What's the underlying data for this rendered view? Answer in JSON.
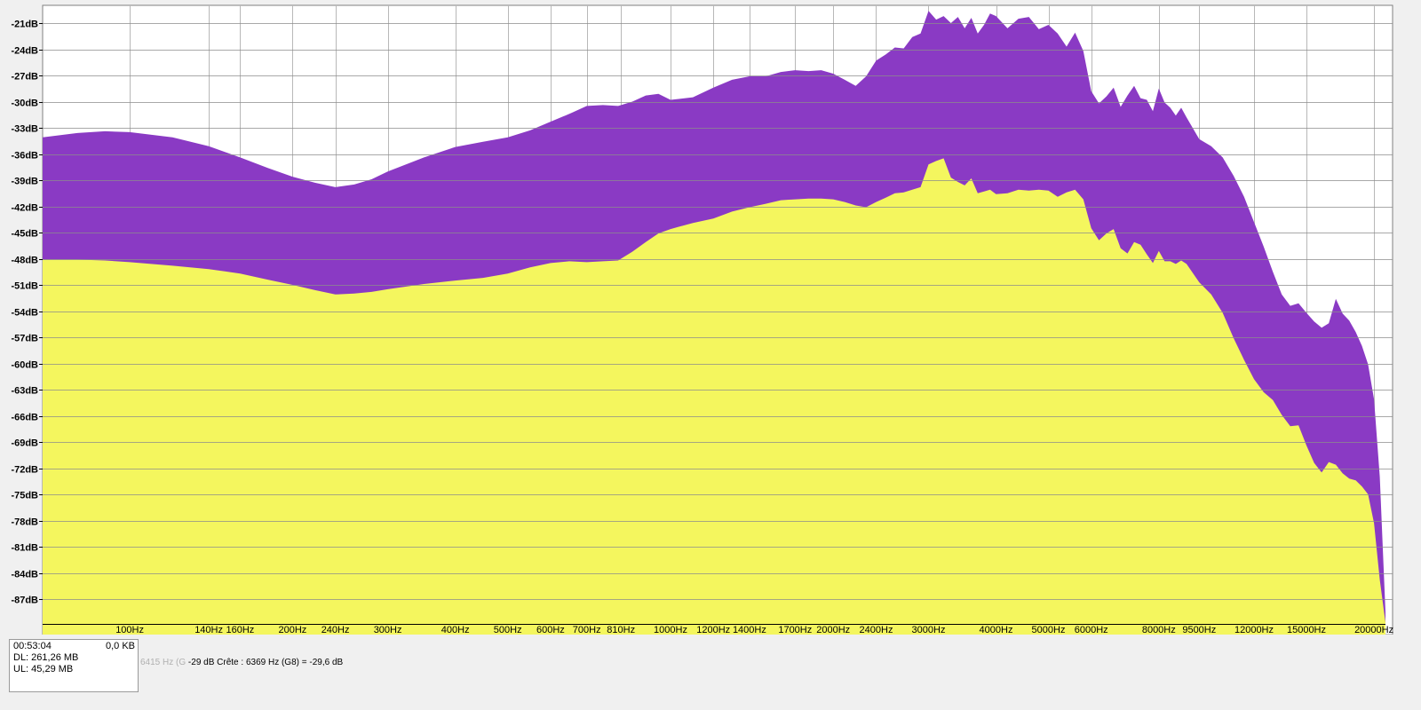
{
  "chart_data": {
    "type": "area",
    "xscale": "log",
    "xlim": [
      69,
      21000
    ],
    "ylim": [
      -89.7,
      -19
    ],
    "grid": true,
    "legend": "none",
    "yticks": [
      "-21dB",
      "-24dB",
      "-27dB",
      "-30dB",
      "-33dB",
      "-36dB",
      "-39dB",
      "-42dB",
      "-45dB",
      "-48dB",
      "-51dB",
      "-54dB",
      "-57dB",
      "-60dB",
      "-63dB",
      "-66dB",
      "-69dB",
      "-72dB",
      "-75dB",
      "-78dB",
      "-81dB",
      "-84dB",
      "-87dB"
    ],
    "ytick_values": [
      -21,
      -24,
      -27,
      -30,
      -33,
      -36,
      -39,
      -42,
      -45,
      -48,
      -51,
      -54,
      -57,
      -60,
      -63,
      -66,
      -69,
      -72,
      -75,
      -78,
      -81,
      -84,
      -87
    ],
    "xticks": [
      "100Hz",
      "140Hz",
      "160Hz",
      "200Hz",
      "240Hz",
      "300Hz",
      "400Hz",
      "500Hz",
      "600Hz",
      "700Hz",
      "810Hz",
      "1000Hz",
      "1200Hz",
      "1400Hz",
      "1700Hz",
      "2000Hz",
      "2400Hz",
      "3000Hz",
      "4000Hz",
      "5000Hz",
      "6000Hz",
      "8000Hz",
      "9500Hz",
      "12000Hz",
      "15000Hz",
      "20000Hz"
    ],
    "xtick_values": [
      100,
      140,
      160,
      200,
      240,
      300,
      400,
      500,
      600,
      700,
      810,
      1000,
      1200,
      1400,
      1700,
      2000,
      2400,
      3000,
      4000,
      5000,
      6000,
      8000,
      9500,
      12000,
      15000,
      20000
    ],
    "series": [
      {
        "color": "#8a3ac4",
        "x": [
          69,
          80,
          90,
          100,
          120,
          140,
          160,
          180,
          200,
          220,
          240,
          260,
          280,
          300,
          350,
          400,
          450,
          500,
          550,
          600,
          650,
          700,
          750,
          800,
          850,
          900,
          950,
          1000,
          1100,
          1200,
          1300,
          1400,
          1500,
          1600,
          1700,
          1800,
          1900,
          2000,
          2100,
          2200,
          2300,
          2400,
          2500,
          2600,
          2700,
          2800,
          2900,
          3000,
          3100,
          3200,
          3300,
          3400,
          3500,
          3600,
          3700,
          3800,
          3900,
          4000,
          4200,
          4400,
          4600,
          4800,
          5000,
          5200,
          5400,
          5600,
          5800,
          6000,
          6200,
          6400,
          6600,
          6800,
          7000,
          7200,
          7400,
          7600,
          7800,
          8000,
          8200,
          8400,
          8600,
          8800,
          9000,
          9500,
          10000,
          10500,
          11000,
          11500,
          12000,
          12500,
          13000,
          13500,
          14000,
          14500,
          15000,
          15500,
          16000,
          16500,
          17000,
          17500,
          18000,
          18500,
          19000,
          19500,
          20000,
          20500,
          21000
        ],
        "y": [
          -34.1,
          -33.6,
          -33.4,
          -33.5,
          -34.1,
          -35.1,
          -36.4,
          -37.6,
          -38.6,
          -39.3,
          -39.8,
          -39.5,
          -38.9,
          -38.0,
          -36.4,
          -35.2,
          -34.6,
          -34.1,
          -33.3,
          -32.3,
          -31.4,
          -30.5,
          -30.4,
          -30.5,
          -30.0,
          -29.3,
          -29.1,
          -29.8,
          -29.5,
          -28.4,
          -27.5,
          -27.1,
          -27.1,
          -26.6,
          -26.4,
          -26.5,
          -26.4,
          -26.8,
          -27.5,
          -28.2,
          -27.1,
          -25.3,
          -24.6,
          -23.8,
          -23.9,
          -22.6,
          -22.2,
          -19.6,
          -20.6,
          -20.2,
          -21.0,
          -20.3,
          -21.6,
          -20.4,
          -22.2,
          -21.2,
          -19.9,
          -20.2,
          -21.6,
          -20.5,
          -20.3,
          -21.7,
          -21.2,
          -22.2,
          -23.7,
          -22.1,
          -24.2,
          -28.8,
          -30.2,
          -29.4,
          -28.4,
          -30.6,
          -29.3,
          -28.2,
          -29.6,
          -29.8,
          -31.1,
          -28.5,
          -30.1,
          -30.7,
          -31.6,
          -30.7,
          -31.8,
          -34.3,
          -35.1,
          -36.4,
          -38.5,
          -40.9,
          -43.8,
          -46.6,
          -49.5,
          -52.1,
          -53.4,
          -53.1,
          -54.2,
          -55.2,
          -55.9,
          -55.4,
          -52.6,
          -54.3,
          -55.1,
          -56.4,
          -58.0,
          -60.1,
          -64.1,
          -73.0,
          -88.5
        ]
      },
      {
        "color": "#f4f65e",
        "x": [
          69,
          80,
          90,
          100,
          120,
          140,
          160,
          180,
          200,
          220,
          240,
          260,
          280,
          300,
          350,
          400,
          450,
          500,
          550,
          600,
          650,
          700,
          750,
          800,
          850,
          900,
          950,
          1000,
          1100,
          1200,
          1300,
          1400,
          1500,
          1600,
          1700,
          1800,
          1900,
          2000,
          2100,
          2200,
          2300,
          2400,
          2500,
          2600,
          2700,
          2800,
          2900,
          3000,
          3100,
          3200,
          3300,
          3400,
          3500,
          3600,
          3700,
          3800,
          3900,
          4000,
          4200,
          4400,
          4600,
          4800,
          5000,
          5200,
          5400,
          5600,
          5800,
          6000,
          6200,
          6400,
          6600,
          6800,
          7000,
          7200,
          7400,
          7600,
          7800,
          8000,
          8200,
          8400,
          8600,
          8800,
          9000,
          9500,
          10000,
          10500,
          11000,
          11500,
          12000,
          12500,
          13000,
          13500,
          14000,
          14500,
          15000,
          15500,
          16000,
          16500,
          17000,
          17500,
          18000,
          18500,
          19000,
          19500,
          20000,
          20500,
          21000
        ],
        "y": [
          -48.1,
          -48.1,
          -48.2,
          -48.4,
          -48.8,
          -49.2,
          -49.7,
          -50.4,
          -51.0,
          -51.6,
          -52.1,
          -52.0,
          -51.8,
          -51.5,
          -50.9,
          -50.5,
          -50.2,
          -49.7,
          -49.0,
          -48.5,
          -48.3,
          -48.4,
          -48.3,
          -48.2,
          -47.2,
          -46.1,
          -45.1,
          -44.6,
          -43.9,
          -43.4,
          -42.6,
          -42.1,
          -41.7,
          -41.3,
          -41.2,
          -41.1,
          -41.1,
          -41.2,
          -41.5,
          -41.9,
          -42.1,
          -41.5,
          -41.0,
          -40.5,
          -40.4,
          -40.1,
          -39.8,
          -37.2,
          -36.8,
          -36.5,
          -38.7,
          -39.2,
          -39.6,
          -38.8,
          -40.5,
          -40.3,
          -40.1,
          -40.6,
          -40.5,
          -40.1,
          -40.2,
          -40.1,
          -40.2,
          -40.9,
          -40.4,
          -40.1,
          -41.2,
          -44.5,
          -45.9,
          -45.1,
          -44.6,
          -46.8,
          -47.4,
          -46.1,
          -46.4,
          -47.5,
          -48.5,
          -47.1,
          -48.3,
          -48.3,
          -48.6,
          -48.2,
          -48.6,
          -50.7,
          -52.1,
          -54.2,
          -57.1,
          -59.6,
          -61.8,
          -63.3,
          -64.2,
          -65.9,
          -67.2,
          -67.1,
          -69.4,
          -71.4,
          -72.5,
          -71.3,
          -71.6,
          -72.6,
          -73.2,
          -73.4,
          -74.1,
          -75.0,
          -78.3,
          -84.8,
          -89.7
        ]
      }
    ]
  },
  "status": {
    "time": "00:53:04",
    "size": "0,0 KB",
    "dl": "DL: 261,26 MB",
    "ul": "UL: 45,29 MB",
    "info_ghost": "6415 Hz (G",
    "info_text": "-29 dB  Crête : 6369 Hz (G8) = -29,6 dB"
  }
}
